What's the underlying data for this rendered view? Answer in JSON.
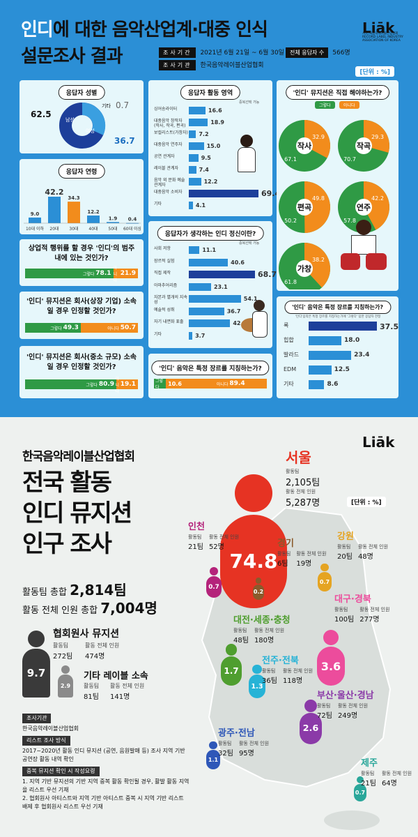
{
  "top": {
    "title_line1_highlight": "인디",
    "title_line1_rest": "에 대한 음악산업계·대중 인식",
    "title_line2": "설문조사 결과",
    "logo": "Liāk",
    "logo_sub": "사)한국음악레이블산업협회 RECORD LABEL INDUSTRY ASSOCIATION OF KOREA",
    "period_label": "조사기간",
    "period_value": "2021년 6월 21일 ~ 6월 30일",
    "respondents_label": "전체 응답자 수",
    "respondents_value": "566명",
    "org_label": "조사기관",
    "org_value": "한국음악레이블산업협회",
    "unit": "[단위 : %]"
  },
  "gender": {
    "title": "응답자 성별",
    "male_label": "남성",
    "female_label": "여성",
    "other_label": "기타",
    "male": "62.5",
    "female": "36.7",
    "other": "0.7"
  },
  "age": {
    "title": "응답자 연령",
    "categories": [
      "10대 이하",
      "20대",
      "30대",
      "40대",
      "50대",
      "60대 이상"
    ],
    "values": [
      "9.0",
      "42.2",
      "34.3",
      "12.2",
      "1.9",
      "0.4"
    ]
  },
  "commercial": {
    "q": "상업적 행위를 할 경우 '인디'의 범주 내에 있는 것인가?",
    "yes_label": "그렇다",
    "no_label": "아니다",
    "yes": "78.1",
    "no": "21.9"
  },
  "company_big": {
    "q": "'인디' 뮤지션은 회사(상장 기업) 소속일 경우 인정할 것인가?",
    "yes_label": "그렇다",
    "no_label": "아니다",
    "yes": "49.3",
    "no": "50.7"
  },
  "company_small": {
    "q": "'인디' 뮤지션은 회사(중소 규모) 소속일 경우 인정할 것인가?",
    "yes_label": "그렇다",
    "no_label": "아니다",
    "yes": "80.9",
    "no": "19.1"
  },
  "field": {
    "title": "응답자 활동 영역",
    "note": "중복선택 가능",
    "items": [
      {
        "label": "싱어송라이터",
        "value": "16.6"
      },
      {
        "label": "대중음악 창작자 (작사, 작곡, 편곡)",
        "value": "18.9"
      },
      {
        "label": "보컬리스트(가창자)",
        "value": "7.2"
      },
      {
        "label": "대중음악 연주자",
        "value": "15.0"
      },
      {
        "label": "공연 관계자",
        "value": "9.5"
      },
      {
        "label": "레이블 관계자",
        "value": "7.4"
      },
      {
        "label": "음악 외 문화 예술 관계자",
        "value": "12.2"
      },
      {
        "label": "대중음악 소비자",
        "value": "69.4"
      },
      {
        "label": "기타",
        "value": "4.1"
      }
    ]
  },
  "spirit": {
    "title": "응답자가 생각하는 인디 정신이란?",
    "note": "중복선택 가능",
    "items": [
      {
        "label": "사회 저항",
        "value": "11.1"
      },
      {
        "label": "장르적 실험",
        "value": "40.6"
      },
      {
        "label": "직접 제작",
        "value": "68.7"
      },
      {
        "label": "아마추어리즘",
        "value": "23.1"
      },
      {
        "label": "자본과 별개의 지속성",
        "value": "54.1"
      },
      {
        "label": "예술적 성취",
        "value": "36.7"
      },
      {
        "label": "자기 내면화 표출",
        "value": "42.9"
      },
      {
        "label": "기타",
        "value": "3.7"
      }
    ]
  },
  "genre_q": {
    "q": "'인디' 음악은 특정 장르를 지칭하는가?",
    "yes_label": "그렇다",
    "no_label": "아니다",
    "yes": "10.6",
    "no": "89.4"
  },
  "direct": {
    "title": "'인디' 뮤지션은 직접 해야하는가?",
    "legend_yes": "그렇다",
    "legend_no": "아니다",
    "items": [
      {
        "label": "작사",
        "yes": "67.1",
        "no": "32.9"
      },
      {
        "label": "작곡",
        "yes": "70.7",
        "no": "29.3"
      },
      {
        "label": "편곡",
        "yes": "50.2",
        "no": "49.8"
      },
      {
        "label": "연주",
        "yes": "57.8",
        "no": "42.2"
      },
      {
        "label": "가창",
        "yes": "61.8",
        "no": "38.2"
      }
    ]
  },
  "genre": {
    "title": "'인디' 음악은 특정 장르를 지칭하는가?",
    "note": "'인디'음악은 특정 장르를 지칭하는가에 '그렇다' 답한 응답자 한정",
    "items": [
      {
        "label": "록",
        "value": "37.5"
      },
      {
        "label": "힙합",
        "value": "18.0"
      },
      {
        "label": "발라드",
        "value": "23.4"
      },
      {
        "label": "EDM",
        "value": "12.5"
      },
      {
        "label": "기타",
        "value": "8.6"
      }
    ]
  },
  "bottom": {
    "org": "한국음악레이블산업협회",
    "big1": "전국 활동",
    "big2": "인디 뮤지션",
    "big3": "인구 조사",
    "logo": "Liāk",
    "unit": "[단위 : %]",
    "teams_total_label": "활동팀 총합",
    "teams_total": "2,814팀",
    "people_total_label": "활동 전체 인원 총합",
    "people_total": "7,004명",
    "member": {
      "title": "협회원사 뮤지션",
      "pct": "9.7",
      "teams_label": "활동팀",
      "teams": "272팀",
      "people_label": "활동 전체 인원",
      "people": "474명"
    },
    "other": {
      "title": "기타 레이블 소속",
      "pct": "2.9",
      "teams_label": "활동팀",
      "teams": "81팀",
      "people_label": "활동 전체 인원",
      "people": "141명"
    },
    "agency_label": "조사기관",
    "agency": "한국음악레이블산업협회",
    "method_label": "리스트 조사 방식",
    "method": "2017~2020년 활동 인디 뮤지션 (공연, 음원발매 등) 조사 지역 기반 공연장 활동 내역 확인",
    "dup_label": "중복 뮤지션 확인 시 작성요령",
    "dup1": "1. 지역 기반 뮤지션의 기반 지역 중복 활동 확인될 경우, 활발 활동 지역을 리스트 우선 기재",
    "dup2": "2. 협회원사 아티스트와 지역 기반 아티스트 중복 시 지역 기반 리스트 배제 후 협회원사 리스트 우선 기재"
  },
  "regions": [
    {
      "name": "서울",
      "pct": "74.8",
      "teams_label": "활동팀",
      "teams": "2,105팀",
      "people_label": "활동 전체 인원",
      "people": "5,287명",
      "color": "#e63323"
    },
    {
      "name": "인천",
      "pct": "0.7",
      "teams_label": "활동팀",
      "teams": "21팀",
      "people_label": "활동 전체 인원",
      "people": "52명",
      "color": "#b4237a"
    },
    {
      "name": "경기",
      "pct": "0.2",
      "teams_label": "활동팀",
      "teams": "6팀",
      "people_label": "활동 전체 인원",
      "people": "19명",
      "color": "#8a5a2c"
    },
    {
      "name": "강원",
      "pct": "0.7",
      "teams_label": "활동팀",
      "teams": "20팀",
      "people_label": "활동 전체 인원",
      "people": "48명",
      "color": "#e5a422"
    },
    {
      "name": "대구·경북",
      "pct": "3.6",
      "teams_label": "활동팀",
      "teams": "100팀",
      "people_label": "활동 전체 인원",
      "people": "277명",
      "color": "#ec4c9c"
    },
    {
      "name": "대전·세종·충청",
      "pct": "1.7",
      "teams_label": "활동팀",
      "teams": "48팀",
      "people_label": "활동 전체 인원",
      "people": "180명",
      "color": "#4f9e2f"
    },
    {
      "name": "전주·전북",
      "pct": "1.3",
      "teams_label": "활동팀",
      "teams": "36팀",
      "people_label": "활동 전체 인원",
      "people": "118명",
      "color": "#27b3d6"
    },
    {
      "name": "부산·울산·경남",
      "pct": "2.6",
      "teams_label": "활동팀",
      "teams": "72팀",
      "people_label": "활동 전체 인원",
      "people": "249명",
      "color": "#8b3aa8"
    },
    {
      "name": "광주·전남",
      "pct": "1.1",
      "teams_label": "활동팀",
      "teams": "32팀",
      "people_label": "활동 전체 인원",
      "people": "95명",
      "color": "#2e57b8"
    },
    {
      "name": "제주",
      "pct": "0.7",
      "teams_label": "활동팀",
      "teams": "21팀",
      "people_label": "활동 전체 인원",
      "people": "64명",
      "color": "#2aa79a"
    }
  ]
}
